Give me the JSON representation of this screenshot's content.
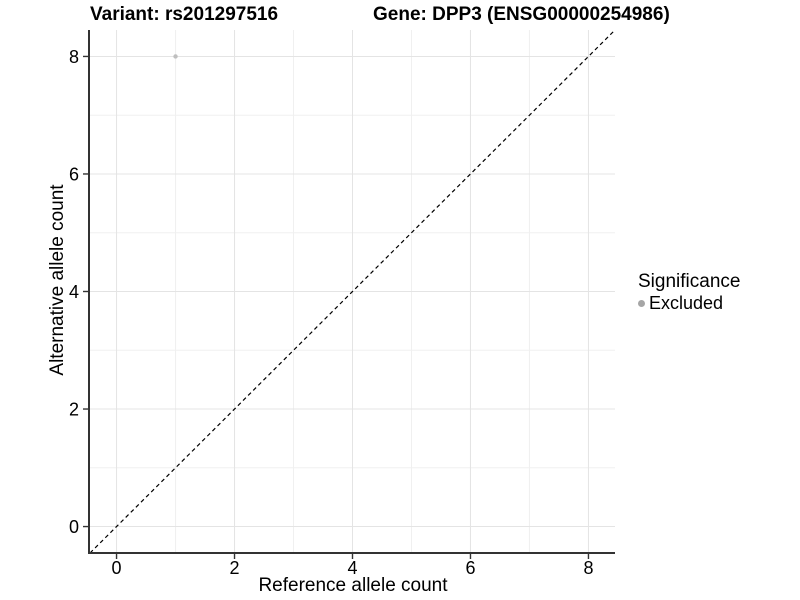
{
  "titles": {
    "variant": "Variant: rs201297516",
    "gene": "Gene: DPP3 (ENSG00000254986)"
  },
  "chart_data": {
    "type": "scatter",
    "xlabel": "Reference allele count",
    "ylabel": "Alternative allele count",
    "xlim": [
      -0.45,
      8.45
    ],
    "ylim": [
      -0.45,
      8.45
    ],
    "xticks": [
      0,
      2,
      4,
      6,
      8
    ],
    "yticks": [
      0,
      2,
      4,
      6,
      8
    ],
    "minor_xticks": [
      1,
      3,
      5,
      7
    ],
    "minor_yticks": [
      1,
      3,
      5,
      7
    ],
    "grid": "major+minor",
    "identity_line": {
      "slope": 1,
      "intercept": 0,
      "style": "dashed",
      "color": "#000000"
    },
    "series": [
      {
        "name": "Excluded",
        "color": "#bfbfbf",
        "points": [
          {
            "x": 1,
            "y": 8
          }
        ]
      }
    ],
    "legend": {
      "title": "Significance",
      "position": "right",
      "items": [
        {
          "label": "Excluded",
          "color": "#a6a6a6",
          "marker": "circle-icon"
        }
      ]
    }
  },
  "colors": {
    "background": "#ffffff",
    "grid_major": "#e4e4e4",
    "grid_minor": "#f0f0f0",
    "axis_line": "#333333",
    "tick": "#333333",
    "text": "#000000"
  }
}
